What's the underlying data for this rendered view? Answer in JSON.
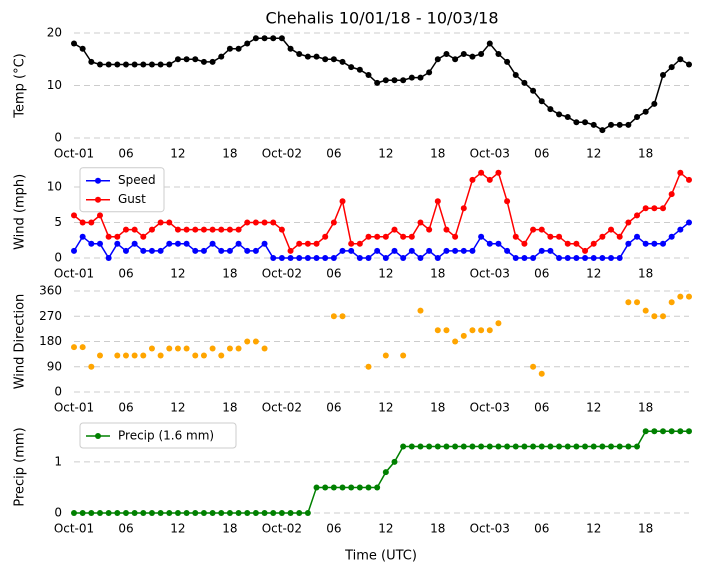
{
  "chart_data": [
    {
      "type": "line",
      "title": "Chehalis 10/01/18 - 10/03/18",
      "ylabel": "Temp (°C)",
      "color": "#000000",
      "x": [
        0,
        1,
        2,
        3,
        4,
        5,
        6,
        7,
        8,
        9,
        10,
        11,
        12,
        13,
        14,
        15,
        16,
        17,
        18,
        19,
        20,
        21,
        22,
        23,
        24,
        25,
        26,
        27,
        28,
        29,
        30,
        31,
        32,
        33,
        34,
        35,
        36,
        37,
        38,
        39,
        40,
        41,
        42,
        43,
        44,
        45,
        46,
        47,
        48,
        49,
        50,
        51,
        52,
        53,
        54,
        55,
        56,
        57,
        58,
        59,
        60,
        61,
        62,
        63,
        64,
        65,
        66,
        67,
        68,
        69,
        70,
        71
      ],
      "values": [
        18,
        17,
        14.5,
        14,
        14,
        14,
        14,
        14,
        14,
        14,
        14,
        14,
        15,
        15,
        15,
        14.5,
        14.5,
        15.5,
        17,
        17,
        18,
        19,
        19,
        19,
        19,
        17,
        16,
        15.5,
        15.5,
        15,
        15,
        14.5,
        13.5,
        13,
        12,
        10.5,
        11,
        11,
        11,
        11.5,
        11.5,
        12.5,
        15,
        16,
        15,
        16,
        15.5,
        16,
        18,
        16,
        14.5,
        12,
        10.5,
        9,
        7,
        5.5,
        4.5,
        4,
        3,
        3,
        2.5,
        1.5,
        2.5,
        2.5,
        2.5,
        4,
        5,
        6.5,
        12,
        13.5,
        15,
        14
      ],
      "xlim": [
        0,
        71
      ],
      "ylim": [
        0,
        20
      ],
      "yticks": [
        0,
        10,
        20
      ],
      "grid": true,
      "xticks": [
        {
          "value": 0,
          "label": "Oct-01"
        },
        {
          "value": 6,
          "label": "06"
        },
        {
          "value": 12,
          "label": "12"
        },
        {
          "value": 18,
          "label": "18"
        },
        {
          "value": 24,
          "label": "Oct-02"
        },
        {
          "value": 30,
          "label": "06"
        },
        {
          "value": 36,
          "label": "12"
        },
        {
          "value": 42,
          "label": "18"
        },
        {
          "value": 48,
          "label": "Oct-03"
        },
        {
          "value": 54,
          "label": "06"
        },
        {
          "value": 60,
          "label": "12"
        },
        {
          "value": 66,
          "label": "18"
        }
      ]
    },
    {
      "type": "line",
      "ylabel": "Wind (mph)",
      "legend": "upper left",
      "x": [
        0,
        1,
        2,
        3,
        4,
        5,
        6,
        7,
        8,
        9,
        10,
        11,
        12,
        13,
        14,
        15,
        16,
        17,
        18,
        19,
        20,
        21,
        22,
        23,
        24,
        25,
        26,
        27,
        28,
        29,
        30,
        31,
        32,
        33,
        34,
        35,
        36,
        37,
        38,
        39,
        40,
        41,
        42,
        43,
        44,
        45,
        46,
        47,
        48,
        49,
        50,
        51,
        52,
        53,
        54,
        55,
        56,
        57,
        58,
        59,
        60,
        61,
        62,
        63,
        64,
        65,
        66,
        67,
        68,
        69,
        70,
        71
      ],
      "series": [
        {
          "name": "Speed",
          "color": "#0000ff",
          "values": [
            1,
            3,
            2,
            2,
            0,
            2,
            1,
            2,
            1,
            1,
            1,
            2,
            2,
            2,
            1,
            1,
            2,
            1,
            1,
            2,
            1,
            1,
            2,
            0,
            0,
            0,
            0,
            0,
            0,
            0,
            0,
            1,
            1,
            0,
            0,
            1,
            0,
            1,
            0,
            1,
            0,
            1,
            0,
            1,
            1,
            1,
            1,
            3,
            2,
            2,
            1,
            0,
            0,
            0,
            1,
            1,
            0,
            0,
            0,
            0,
            0,
            0,
            0,
            0,
            2,
            3,
            2,
            2,
            2,
            3,
            4,
            5
          ]
        },
        {
          "name": "Gust",
          "color": "#ff0000",
          "values": [
            6,
            5,
            5,
            6,
            3,
            3,
            4,
            4,
            3,
            4,
            5,
            5,
            4,
            4,
            4,
            4,
            4,
            4,
            4,
            4,
            5,
            5,
            5,
            5,
            4,
            1,
            2,
            2,
            2,
            3,
            5,
            8,
            2,
            2,
            3,
            3,
            3,
            4,
            3,
            3,
            5,
            4,
            8,
            4,
            3,
            7,
            11,
            12,
            11,
            12,
            8,
            3,
            2,
            4,
            4,
            3,
            3,
            2,
            2,
            1,
            2,
            3,
            4,
            3,
            5,
            6,
            7,
            7,
            7,
            9,
            12,
            11
          ]
        }
      ],
      "xlim": [
        0,
        71
      ],
      "ylim": [
        0,
        13
      ],
      "yticks": [
        0,
        5,
        10
      ],
      "grid": true,
      "xticks": [
        {
          "value": 0,
          "label": "Oct-01"
        },
        {
          "value": 6,
          "label": "06"
        },
        {
          "value": 12,
          "label": "12"
        },
        {
          "value": 18,
          "label": "18"
        },
        {
          "value": 24,
          "label": "Oct-02"
        },
        {
          "value": 30,
          "label": "06"
        },
        {
          "value": 36,
          "label": "12"
        },
        {
          "value": 42,
          "label": "18"
        },
        {
          "value": 48,
          "label": "Oct-03"
        },
        {
          "value": 54,
          "label": "06"
        },
        {
          "value": 60,
          "label": "12"
        },
        {
          "value": 66,
          "label": "18"
        }
      ]
    },
    {
      "type": "scatter",
      "ylabel": "Wind Direction",
      "color": "#ffa500",
      "x": [
        0,
        1,
        2,
        3,
        4,
        5,
        6,
        7,
        8,
        9,
        10,
        11,
        12,
        13,
        14,
        15,
        16,
        17,
        18,
        19,
        20,
        21,
        22,
        23,
        24,
        25,
        26,
        27,
        28,
        29,
        30,
        31,
        32,
        33,
        34,
        35,
        36,
        37,
        38,
        39,
        40,
        41,
        42,
        43,
        44,
        45,
        46,
        47,
        48,
        49,
        50,
        51,
        52,
        53,
        54,
        55,
        56,
        57,
        58,
        59,
        60,
        61,
        62,
        63,
        64,
        65,
        66,
        67,
        68,
        69,
        70,
        71
      ],
      "values": [
        160,
        160,
        90,
        130,
        null,
        130,
        130,
        130,
        130,
        155,
        130,
        155,
        155,
        155,
        130,
        130,
        155,
        130,
        155,
        155,
        180,
        180,
        155,
        null,
        null,
        null,
        null,
        null,
        null,
        null,
        270,
        270,
        null,
        null,
        90,
        null,
        130,
        null,
        130,
        null,
        290,
        null,
        220,
        220,
        180,
        200,
        220,
        220,
        220,
        245,
        null,
        null,
        null,
        90,
        65,
        null,
        null,
        null,
        null,
        null,
        null,
        null,
        null,
        null,
        320,
        320,
        290,
        270,
        270,
        320,
        340,
        340
      ],
      "xlim": [
        0,
        71
      ],
      "ylim": [
        0,
        360
      ],
      "yticks": [
        0,
        90,
        180,
        270,
        360
      ],
      "grid": true,
      "xticks": [
        {
          "value": 0,
          "label": "Oct-01"
        },
        {
          "value": 6,
          "label": "06"
        },
        {
          "value": 12,
          "label": "12"
        },
        {
          "value": 18,
          "label": "18"
        },
        {
          "value": 24,
          "label": "Oct-02"
        },
        {
          "value": 30,
          "label": "06"
        },
        {
          "value": 36,
          "label": "12"
        },
        {
          "value": 42,
          "label": "18"
        },
        {
          "value": 48,
          "label": "Oct-03"
        },
        {
          "value": 54,
          "label": "06"
        },
        {
          "value": 60,
          "label": "12"
        },
        {
          "value": 66,
          "label": "18"
        }
      ]
    },
    {
      "type": "line",
      "ylabel": "Precip (mm)",
      "xlabel": "Time (UTC)",
      "legend": "upper left",
      "x": [
        0,
        1,
        2,
        3,
        4,
        5,
        6,
        7,
        8,
        9,
        10,
        11,
        12,
        13,
        14,
        15,
        16,
        17,
        18,
        19,
        20,
        21,
        22,
        23,
        24,
        25,
        26,
        27,
        28,
        29,
        30,
        31,
        32,
        33,
        34,
        35,
        36,
        37,
        38,
        39,
        40,
        41,
        42,
        43,
        44,
        45,
        46,
        47,
        48,
        49,
        50,
        51,
        52,
        53,
        54,
        55,
        56,
        57,
        58,
        59,
        60,
        61,
        62,
        63,
        64,
        65,
        66,
        67,
        68,
        69,
        70,
        71
      ],
      "series": [
        {
          "name": "Precip (1.6 mm)",
          "color": "#008000",
          "values": [
            0,
            0,
            0,
            0,
            0,
            0,
            0,
            0,
            0,
            0,
            0,
            0,
            0,
            0,
            0,
            0,
            0,
            0,
            0,
            0,
            0,
            0,
            0,
            0,
            0,
            0,
            0,
            0,
            0.5,
            0.5,
            0.5,
            0.5,
            0.5,
            0.5,
            0.5,
            0.5,
            0.8,
            1,
            1.3,
            1.3,
            1.3,
            1.3,
            1.3,
            1.3,
            1.3,
            1.3,
            1.3,
            1.3,
            1.3,
            1.3,
            1.3,
            1.3,
            1.3,
            1.3,
            1.3,
            1.3,
            1.3,
            1.3,
            1.3,
            1.3,
            1.3,
            1.3,
            1.3,
            1.3,
            1.3,
            1.3,
            1.6,
            1.6,
            1.6,
            1.6,
            1.6,
            1.6
          ]
        }
      ],
      "xlim": [
        0,
        71
      ],
      "ylim": [
        0,
        1.8
      ],
      "yticks": [
        0,
        1
      ],
      "grid": true,
      "xticks": [
        {
          "value": 0,
          "label": "Oct-01"
        },
        {
          "value": 6,
          "label": "06"
        },
        {
          "value": 12,
          "label": "12"
        },
        {
          "value": 18,
          "label": "18"
        },
        {
          "value": 24,
          "label": "Oct-02"
        },
        {
          "value": 30,
          "label": "06"
        },
        {
          "value": 36,
          "label": "12"
        },
        {
          "value": 42,
          "label": "18"
        },
        {
          "value": 48,
          "label": "Oct-03"
        },
        {
          "value": 54,
          "label": "06"
        },
        {
          "value": 60,
          "label": "12"
        },
        {
          "value": 66,
          "label": "18"
        }
      ]
    }
  ]
}
